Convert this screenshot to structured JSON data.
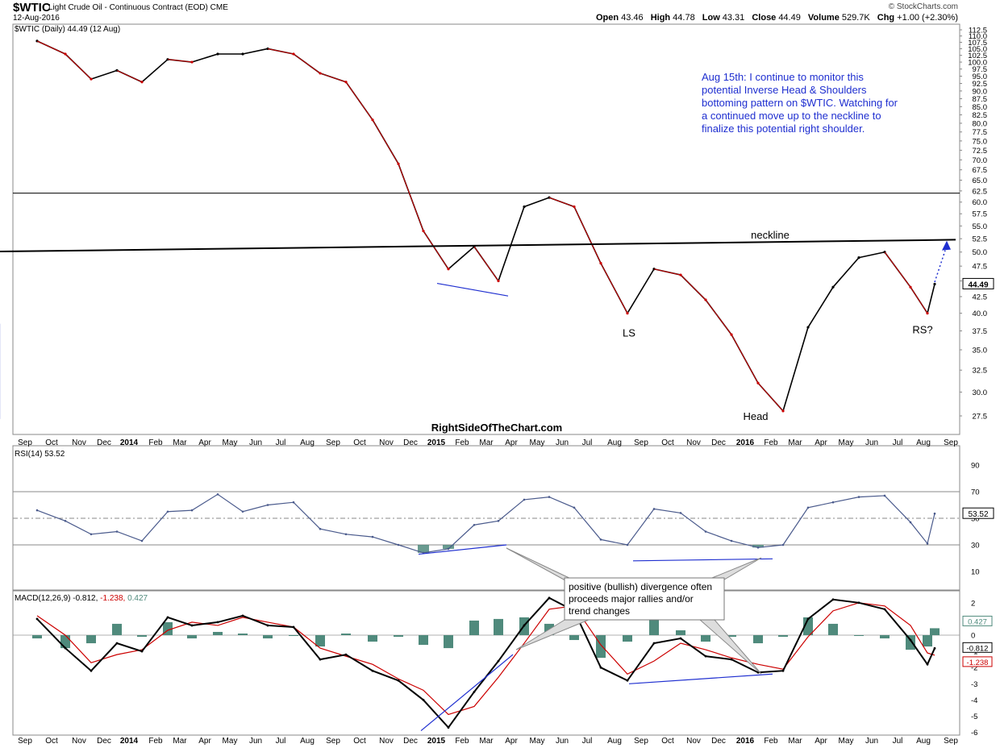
{
  "header": {
    "symbol": "$WTIC",
    "name": "Light Crude Oil - Continuous Contract (EOD)",
    "exchange": "CME",
    "date": "12-Aug-2016",
    "open_label": "Open",
    "open": "43.46",
    "high_label": "High",
    "high": "44.78",
    "low_label": "Low",
    "low": "43.31",
    "close_label": "Close",
    "close": "44.49",
    "volume_label": "Volume",
    "volume": "529.7K",
    "chg_label": "Chg",
    "chg": "+1.00 (+2.30%)",
    "logo": "© StockCharts.com"
  },
  "colors": {
    "price": "#000000",
    "down": "#cc0000",
    "trendline": "#1f2fd0",
    "annotation": "#1f2fd0",
    "rsi": "#4a5a8c",
    "oversold_fill": "#4f8a7c",
    "macd": "#000000",
    "signal": "#cc0000",
    "histogram": "#4f8a7c",
    "last_tag_bg": "#ffffff"
  },
  "chart_data": [
    {
      "type": "line",
      "panel": "price",
      "title": "$WTIC (Daily) 44.49 (12 Aug)",
      "x_tick_labels": [
        "Sep",
        "Oct",
        "Nov",
        "Dec",
        "2014",
        "Feb",
        "Mar",
        "Apr",
        "May",
        "Jun",
        "Jul",
        "Aug",
        "Sep",
        "Oct",
        "Nov",
        "Dec",
        "2015",
        "Feb",
        "Mar",
        "Apr",
        "May",
        "Jun",
        "Jul",
        "Aug",
        "Sep",
        "Oct",
        "Nov",
        "Dec",
        "2016",
        "Feb",
        "Mar",
        "Apr",
        "May",
        "Jun",
        "Jul",
        "Aug",
        "Sep"
      ],
      "y_tick_labels": [
        "27.5",
        "30.0",
        "32.5",
        "35.0",
        "37.5",
        "40.0",
        "42.5",
        "45.0",
        "47.5",
        "50.0",
        "52.5",
        "55.0",
        "57.5",
        "60.0",
        "62.5",
        "65.0",
        "67.5",
        "70.0",
        "72.5",
        "75.0",
        "77.5",
        "80.0",
        "82.5",
        "85.0",
        "87.5",
        "90.0",
        "92.5",
        "95.0",
        "97.5",
        "100.0",
        "102.5",
        "105.0",
        "107.5",
        "110.0",
        "112.5"
      ],
      "ylim": [
        26,
        113
      ],
      "y_scale": "log",
      "x_dates": [
        "Sep 2013",
        "Oct",
        "Nov",
        "Dec",
        "Jan 2014",
        "Feb",
        "Mar",
        "Apr",
        "May",
        "Jun",
        "Jul",
        "Aug",
        "Sep",
        "Oct",
        "Nov",
        "Dec",
        "Jan 2015",
        "Feb",
        "Mar",
        "Apr",
        "May",
        "Jun",
        "Jul",
        "Aug",
        "Sep",
        "Oct",
        "Nov",
        "Dec",
        "Jan 2016",
        "Feb",
        "Mar",
        "Apr",
        "May",
        "Jun",
        "Jul",
        "Aug",
        "Aug 12 2016"
      ],
      "close": [
        108,
        103,
        94,
        97,
        93,
        101,
        100,
        103,
        103,
        105,
        103,
        96,
        93,
        81,
        69,
        54,
        47,
        51,
        45,
        59,
        61,
        59,
        48,
        40,
        47,
        46,
        42,
        37,
        31,
        28,
        38,
        44,
        49,
        50,
        44,
        40,
        44.49
      ],
      "last_value": "44.49",
      "horizontal_line": 62,
      "neckline": {
        "label": "neckline",
        "from": [
          "Jul 2015",
          50.1
        ],
        "to": [
          "Sep 2016",
          52.3
        ]
      },
      "trendline_2015_lows": {
        "from": [
          "Jan 2015",
          44.6
        ],
        "to": [
          "Mar 2015",
          42.6
        ]
      },
      "projection_arrow": {
        "from": [
          "Aug 12 2016",
          44.8
        ],
        "to": [
          "Aug 31 2016",
          51.5
        ]
      },
      "pattern_labels": [
        {
          "text": "LS",
          "at": [
            "Sep 2015",
            37.2
          ]
        },
        {
          "text": "Head",
          "at": [
            "Feb 2016",
            27.4
          ]
        },
        {
          "text": "RS?",
          "at": [
            "Aug 2016",
            37.6
          ]
        }
      ],
      "watermark": "RightSideOfTheChart.com",
      "annotation": "Aug 15th: I continue to monitor this potential Inverse Head & Shoulders bottoming pattern on $WTIC. Watching for a continued move up to the neckline to finalize this potential right shoulder."
    },
    {
      "type": "line",
      "panel": "rsi",
      "title": "RSI(14) 53.52",
      "y_tick_labels": [
        "10",
        "30",
        "50",
        "70",
        "90"
      ],
      "ylim": [
        0,
        100
      ],
      "reference_lines": [
        30,
        50,
        70
      ],
      "values": [
        56,
        48,
        38,
        40,
        33,
        55,
        56,
        68,
        55,
        60,
        62,
        42,
        38,
        36,
        30,
        24,
        27,
        45,
        48,
        64,
        66,
        58,
        34,
        30,
        57,
        54,
        40,
        33,
        28,
        30,
        58,
        62,
        66,
        67,
        47,
        31,
        53.52
      ],
      "last_value": "53.52",
      "divergence_lines": [
        {
          "from": [
            "Jan 2015",
            23
          ],
          "to": [
            "Apr 2015",
            30
          ]
        },
        {
          "from": [
            "Aug 2015",
            18
          ],
          "to": [
            "Feb 2016",
            19.5
          ]
        }
      ]
    },
    {
      "type": "line",
      "panel": "macd",
      "title": "MACD(12,26,9)",
      "title_values": [
        "-0.812",
        "-1.238",
        "0.427"
      ],
      "y_tick_labels": [
        "-6",
        "-5",
        "-4",
        "-3",
        "-2",
        "-1",
        "0",
        "1",
        "2"
      ],
      "ylim": [
        -6.1,
        2.7
      ],
      "series": [
        {
          "name": "MACD",
          "values": [
            1.0,
            -0.8,
            -2.2,
            -0.5,
            -1.0,
            1.1,
            0.6,
            0.8,
            1.2,
            0.6,
            0.5,
            -1.5,
            -1.2,
            -2.2,
            -2.8,
            -4.0,
            -5.7,
            -3.5,
            -1.6,
            0.6,
            2.3,
            1.5,
            -2.0,
            -2.8,
            -0.5,
            -0.2,
            -1.3,
            -1.5,
            -2.3,
            -2.2,
            1.0,
            2.2,
            2.0,
            1.6,
            -0.3,
            -1.8,
            -0.812
          ]
        },
        {
          "name": "Signal",
          "values": [
            1.2,
            0.0,
            -1.7,
            -1.2,
            -0.9,
            0.3,
            0.8,
            0.6,
            1.1,
            0.8,
            0.5,
            -0.8,
            -1.3,
            -1.8,
            -2.7,
            -3.4,
            -4.9,
            -4.4,
            -2.6,
            -0.5,
            1.6,
            1.8,
            -0.6,
            -2.4,
            -1.6,
            -0.5,
            -0.9,
            -1.4,
            -1.8,
            -2.1,
            -0.1,
            1.5,
            2.0,
            1.8,
            0.6,
            -1.1,
            -1.238
          ]
        },
        {
          "name": "Histogram",
          "values": [
            -0.2,
            -0.8,
            -0.5,
            0.7,
            -0.1,
            0.8,
            -0.2,
            0.2,
            0.1,
            -0.2,
            0.0,
            -0.7,
            0.1,
            -0.4,
            -0.1,
            -0.6,
            -0.8,
            0.9,
            1.0,
            1.1,
            0.7,
            -0.3,
            -1.4,
            -0.4,
            1.1,
            0.3,
            -0.4,
            -0.1,
            -0.5,
            -0.1,
            1.1,
            0.7,
            0.0,
            -0.2,
            -0.9,
            -0.7,
            0.427
          ]
        }
      ],
      "divergence_lines": [
        {
          "from": [
            "Dec 2014",
            -5.9
          ],
          "to": [
            "Apr 2015",
            -1.2
          ]
        },
        {
          "from": [
            "Aug 2015",
            -3.0
          ],
          "to": [
            "Feb 2016",
            -2.4
          ]
        }
      ],
      "annotation": "positive (bullish) divergence often proceeds major rallies and/or trend changes"
    }
  ]
}
